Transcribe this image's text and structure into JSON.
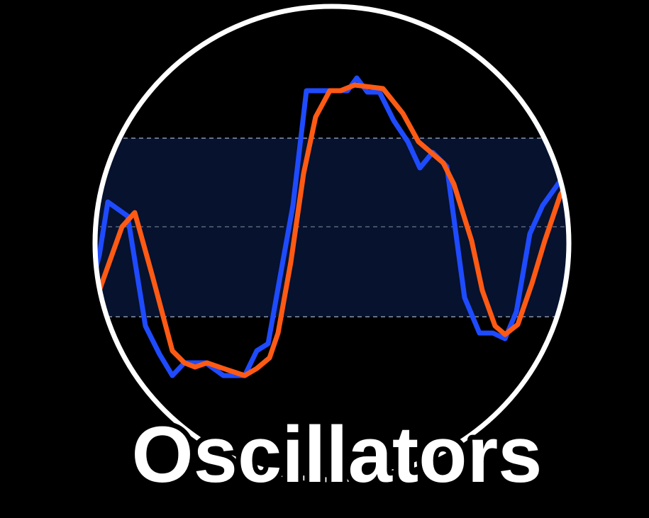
{
  "title": "Oscillators"
}
